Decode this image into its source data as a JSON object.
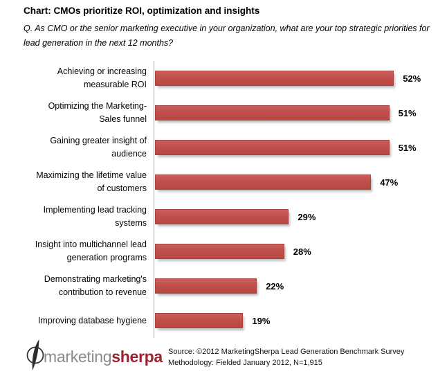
{
  "header": {
    "title": "Chart: CMOs prioritize ROI, optimization and insights",
    "question_line1": "Q. As CMO or the senior marketing executive in your organization, what are your top strategic priorities for",
    "question_line2": "lead generation in the next 12 months?"
  },
  "chart_data": {
    "type": "bar",
    "orientation": "horizontal",
    "title": "Chart: CMOs prioritize ROI, optimization and insights",
    "categories": [
      "Achieving or increasing measurable ROI",
      "Optimizing the Marketing-Sales funnel",
      "Gaining greater insight of audience",
      "Maximizing the lifetime value of customers",
      "Implementing lead tracking systems",
      "Insight into multichannel lead generation programs",
      "Demonstrating marketing's contribution to revenue",
      "Improving database hygiene"
    ],
    "category_line_breaks": [
      [
        "Achieving or increasing",
        "measurable ROI"
      ],
      [
        "Optimizing the Marketing-",
        "Sales funnel"
      ],
      [
        "Gaining greater insight of",
        "audience"
      ],
      [
        "Maximizing the lifetime value",
        "of customers"
      ],
      [
        "Implementing lead tracking",
        "systems"
      ],
      [
        "Insight into multichannel lead",
        "generation programs"
      ],
      [
        "Demonstrating marketing's",
        "contribution to revenue"
      ],
      [
        "Improving database hygiene"
      ]
    ],
    "values": [
      52,
      51,
      51,
      47,
      29,
      28,
      22,
      19
    ],
    "data_labels": [
      "52%",
      "51%",
      "51%",
      "47%",
      "29%",
      "28%",
      "22%",
      "19%"
    ],
    "xlabel": "",
    "ylabel": "",
    "xlim": [
      0,
      60
    ],
    "grid": false,
    "legend": false,
    "bar_color": "#c0504d",
    "axis_color": "#a6a6a6"
  },
  "footer": {
    "logo_gray": "marketing",
    "logo_red": "sherpa",
    "source_line1": "Source: ©2012 MarketingSherpa Lead Generation Benchmark Survey",
    "source_line2": "Methodology: Fielded January 2012, N=1,915"
  }
}
